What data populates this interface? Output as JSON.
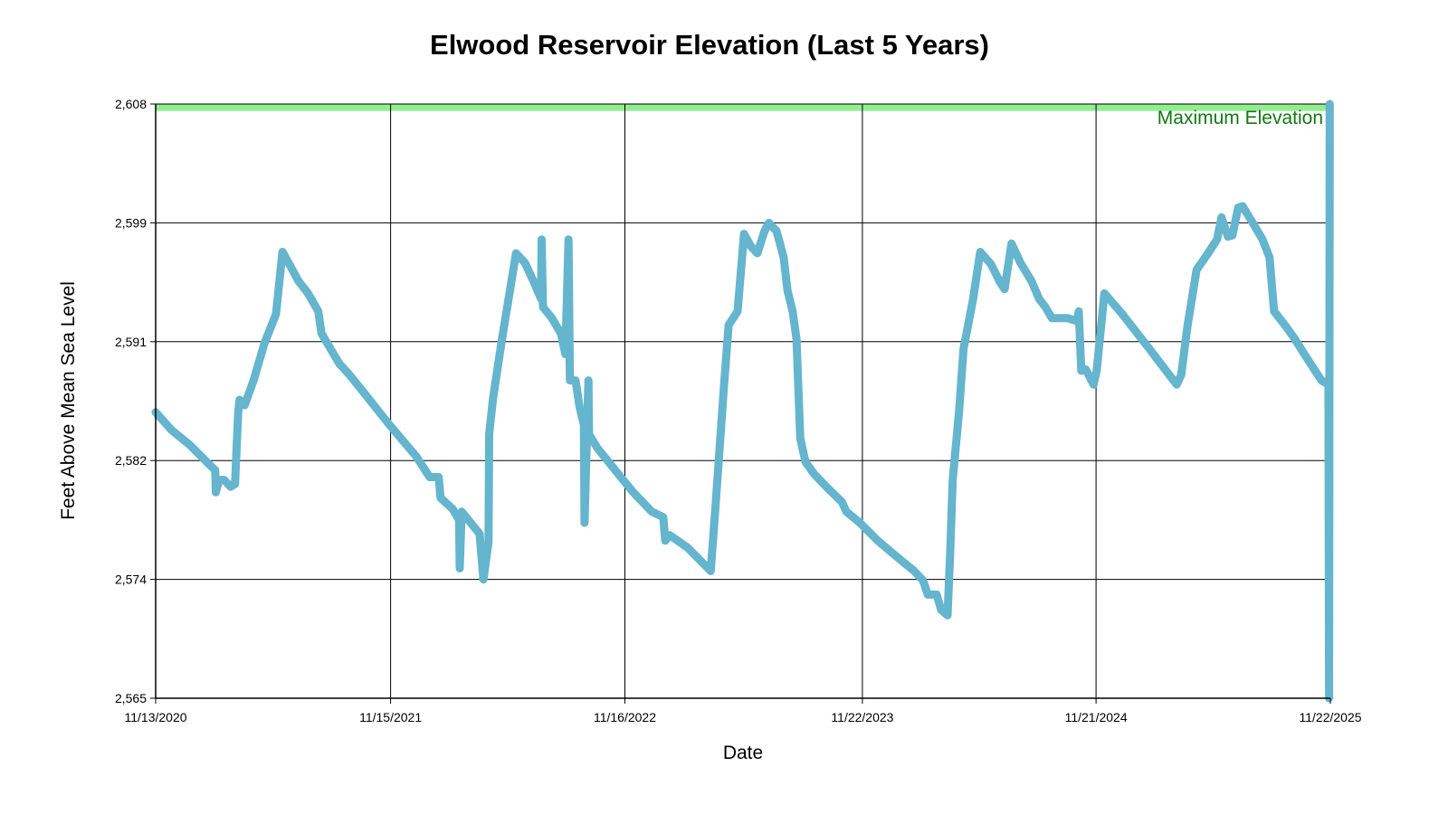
{
  "chart_data": {
    "type": "line",
    "title": "Elwood Reservoir Elevation (Last 5 Years)",
    "xlabel": "Date",
    "ylabel": "Feet Above Mean Sea Level",
    "x_units": "days since 11/13/2020",
    "xlim": [
      0,
      1835
    ],
    "ylim": [
      2565,
      2608
    ],
    "grid": true,
    "line_color": "#64b5cd",
    "max_elevation": {
      "label": "Maximum Elevation",
      "value": 2608,
      "band_low": 2607.5,
      "color": "#90ee90",
      "label_color": "#127812"
    },
    "x_ticks": [
      {
        "value": 0,
        "label": "11/13/2020"
      },
      {
        "value": 367,
        "label": "11/15/2021"
      },
      {
        "value": 733,
        "label": "11/16/2022"
      },
      {
        "value": 1104,
        "label": "11/22/2023"
      },
      {
        "value": 1469,
        "label": "11/21/2024"
      },
      {
        "value": 1835,
        "label": "11/22/2025"
      }
    ],
    "y_ticks": [
      {
        "value": 2565,
        "label": "2,565"
      },
      {
        "value": 2573.6,
        "label": "2,574"
      },
      {
        "value": 2582.2,
        "label": "2,582"
      },
      {
        "value": 2590.8,
        "label": "2,591"
      },
      {
        "value": 2599.4,
        "label": "2,599"
      },
      {
        "value": 2608,
        "label": "2,608"
      }
    ],
    "series": [
      {
        "name": "Elevation",
        "x": [
          0,
          25,
          54,
          82,
          93,
          94,
          99,
          107,
          117,
          124,
          129,
          131,
          139,
          153,
          170,
          188,
          198,
          209,
          223,
          238,
          254,
          259,
          273,
          287,
          301,
          322,
          365,
          407,
          428,
          442,
          445,
          464,
          474,
          475,
          478,
          485,
          506,
          512,
          520,
          521,
          527,
          541,
          563,
          577,
          591,
          602,
          603,
          605,
          619,
          633,
          640,
          645,
          647,
          656,
          662,
          669,
          670,
          676,
          677,
          690,
          718,
          746,
          775,
          793,
          796,
          803,
          831,
          867,
          874,
          888,
          895,
          909,
          919,
          930,
          940,
          951,
          958,
          970,
          981,
          987,
          995,
          1001,
          1007,
          1015,
          1029,
          1050,
          1072,
          1079,
          1100,
          1128,
          1156,
          1185,
          1199,
          1206,
          1220,
          1227,
          1237,
          1241,
          1245,
          1255,
          1262,
          1277,
          1288,
          1305,
          1319,
          1326,
          1337,
          1351,
          1368,
          1380,
          1390,
          1400,
          1425,
          1439,
          1442,
          1446,
          1453,
          1465,
          1470,
          1482,
          1510,
          1552,
          1595,
          1602,
          1612,
          1626,
          1644,
          1658,
          1665,
          1675,
          1682,
          1691,
          1698,
          1715,
          1729,
          1740,
          1747,
          1764,
          1778,
          1793,
          1807,
          1821,
          1832,
          1833,
          1834
        ],
        "y": [
          2585.7,
          2584.4,
          2583.3,
          2582.0,
          2581.5,
          2579.9,
          2580.8,
          2580.8,
          2580.3,
          2580.5,
          2585.7,
          2586.6,
          2586.2,
          2588.0,
          2590.7,
          2592.8,
          2597.3,
          2596.4,
          2595.2,
          2594.3,
          2593.0,
          2591.4,
          2590.3,
          2589.2,
          2588.5,
          2587.3,
          2584.8,
          2582.5,
          2581.0,
          2581.0,
          2579.5,
          2578.7,
          2577.9,
          2574.4,
          2578.5,
          2578.1,
          2576.9,
          2573.6,
          2576.3,
          2584.1,
          2586.7,
          2591.0,
          2597.2,
          2596.5,
          2595.1,
          2593.9,
          2598.2,
          2593.3,
          2592.5,
          2591.4,
          2589.9,
          2598.2,
          2588.0,
          2588.0,
          2586.1,
          2584.8,
          2577.7,
          2588.0,
          2584.1,
          2583.1,
          2581.5,
          2579.9,
          2578.5,
          2578.1,
          2576.4,
          2576.8,
          2575.9,
          2574.2,
          2578.5,
          2587.7,
          2592.0,
          2593.0,
          2598.6,
          2597.7,
          2597.2,
          2598.8,
          2599.4,
          2598.8,
          2596.9,
          2594.5,
          2593.0,
          2591.0,
          2583.8,
          2582.1,
          2581.2,
          2580.2,
          2579.2,
          2578.5,
          2577.7,
          2576.4,
          2575.3,
          2574.2,
          2573.5,
          2572.5,
          2572.5,
          2571.4,
          2571.0,
          2575.3,
          2580.8,
          2585.7,
          2590.3,
          2593.9,
          2597.3,
          2596.4,
          2595.1,
          2594.6,
          2597.9,
          2596.5,
          2595.2,
          2593.9,
          2593.3,
          2592.5,
          2592.5,
          2592.3,
          2593.0,
          2588.7,
          2588.8,
          2587.7,
          2588.7,
          2594.3,
          2592.8,
          2590.3,
          2587.7,
          2588.4,
          2592.0,
          2596.0,
          2597.2,
          2598.2,
          2599.8,
          2598.4,
          2598.5,
          2600.5,
          2600.6,
          2599.3,
          2598.2,
          2596.9,
          2593.0,
          2592.0,
          2591.1,
          2590.0,
          2589.0,
          2588.0,
          2587.7,
          2565.0,
          2608.0
        ]
      }
    ]
  }
}
